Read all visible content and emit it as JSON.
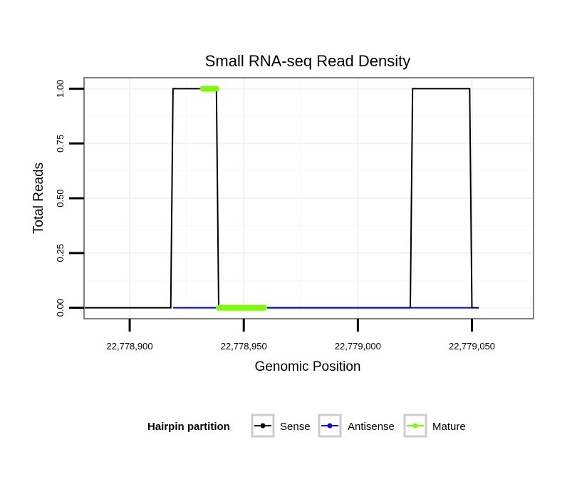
{
  "chart_data": {
    "type": "line",
    "title": "Small RNA-seq Read Density",
    "xlabel": "Genomic Position",
    "ylabel": "Total Reads",
    "xlim": [
      22778880,
      22779077
    ],
    "ylim": [
      -0.05,
      1.05
    ],
    "x_ticks": [
      22778900,
      22778950,
      22779000,
      22779050
    ],
    "x_tick_labels": [
      "22,778,900",
      "22,778,950",
      "22,779,000",
      "22,779,050"
    ],
    "y_ticks": [
      0,
      0.25,
      0.5,
      0.75,
      1.0
    ],
    "y_tick_labels": [
      "0.00",
      "0.25",
      "0.50",
      "0.75",
      "1.00"
    ],
    "grid": true,
    "legend": {
      "title": "Hairpin partition",
      "position": "bottom",
      "entries": [
        {
          "label": "Sense",
          "color": "#000000"
        },
        {
          "label": "Antisense",
          "color": "#0000ff"
        },
        {
          "label": "Mature",
          "color": "#7cfc00"
        }
      ]
    },
    "series": [
      {
        "name": "Sense",
        "color": "#000000",
        "x": [
          22778877,
          22778918,
          22778919,
          22778938,
          22778939,
          22779023,
          22779024,
          22779049,
          22779050,
          22779053
        ],
        "y": [
          0,
          0,
          1,
          1,
          0,
          0,
          1,
          1,
          0,
          0
        ]
      },
      {
        "name": "Antisense",
        "color": "#0000ff",
        "x": [
          22778919,
          22778939,
          22779024,
          22779050
        ],
        "y": [
          0,
          0,
          0,
          0
        ]
      },
      {
        "name": "Mature",
        "color": "#7cfc00",
        "segments": [
          {
            "x": [
              22778932,
              22778938
            ],
            "y": [
              1,
              1
            ]
          },
          {
            "x": [
              22778939,
              22778959
            ],
            "y": [
              0,
              0
            ]
          }
        ]
      }
    ]
  }
}
